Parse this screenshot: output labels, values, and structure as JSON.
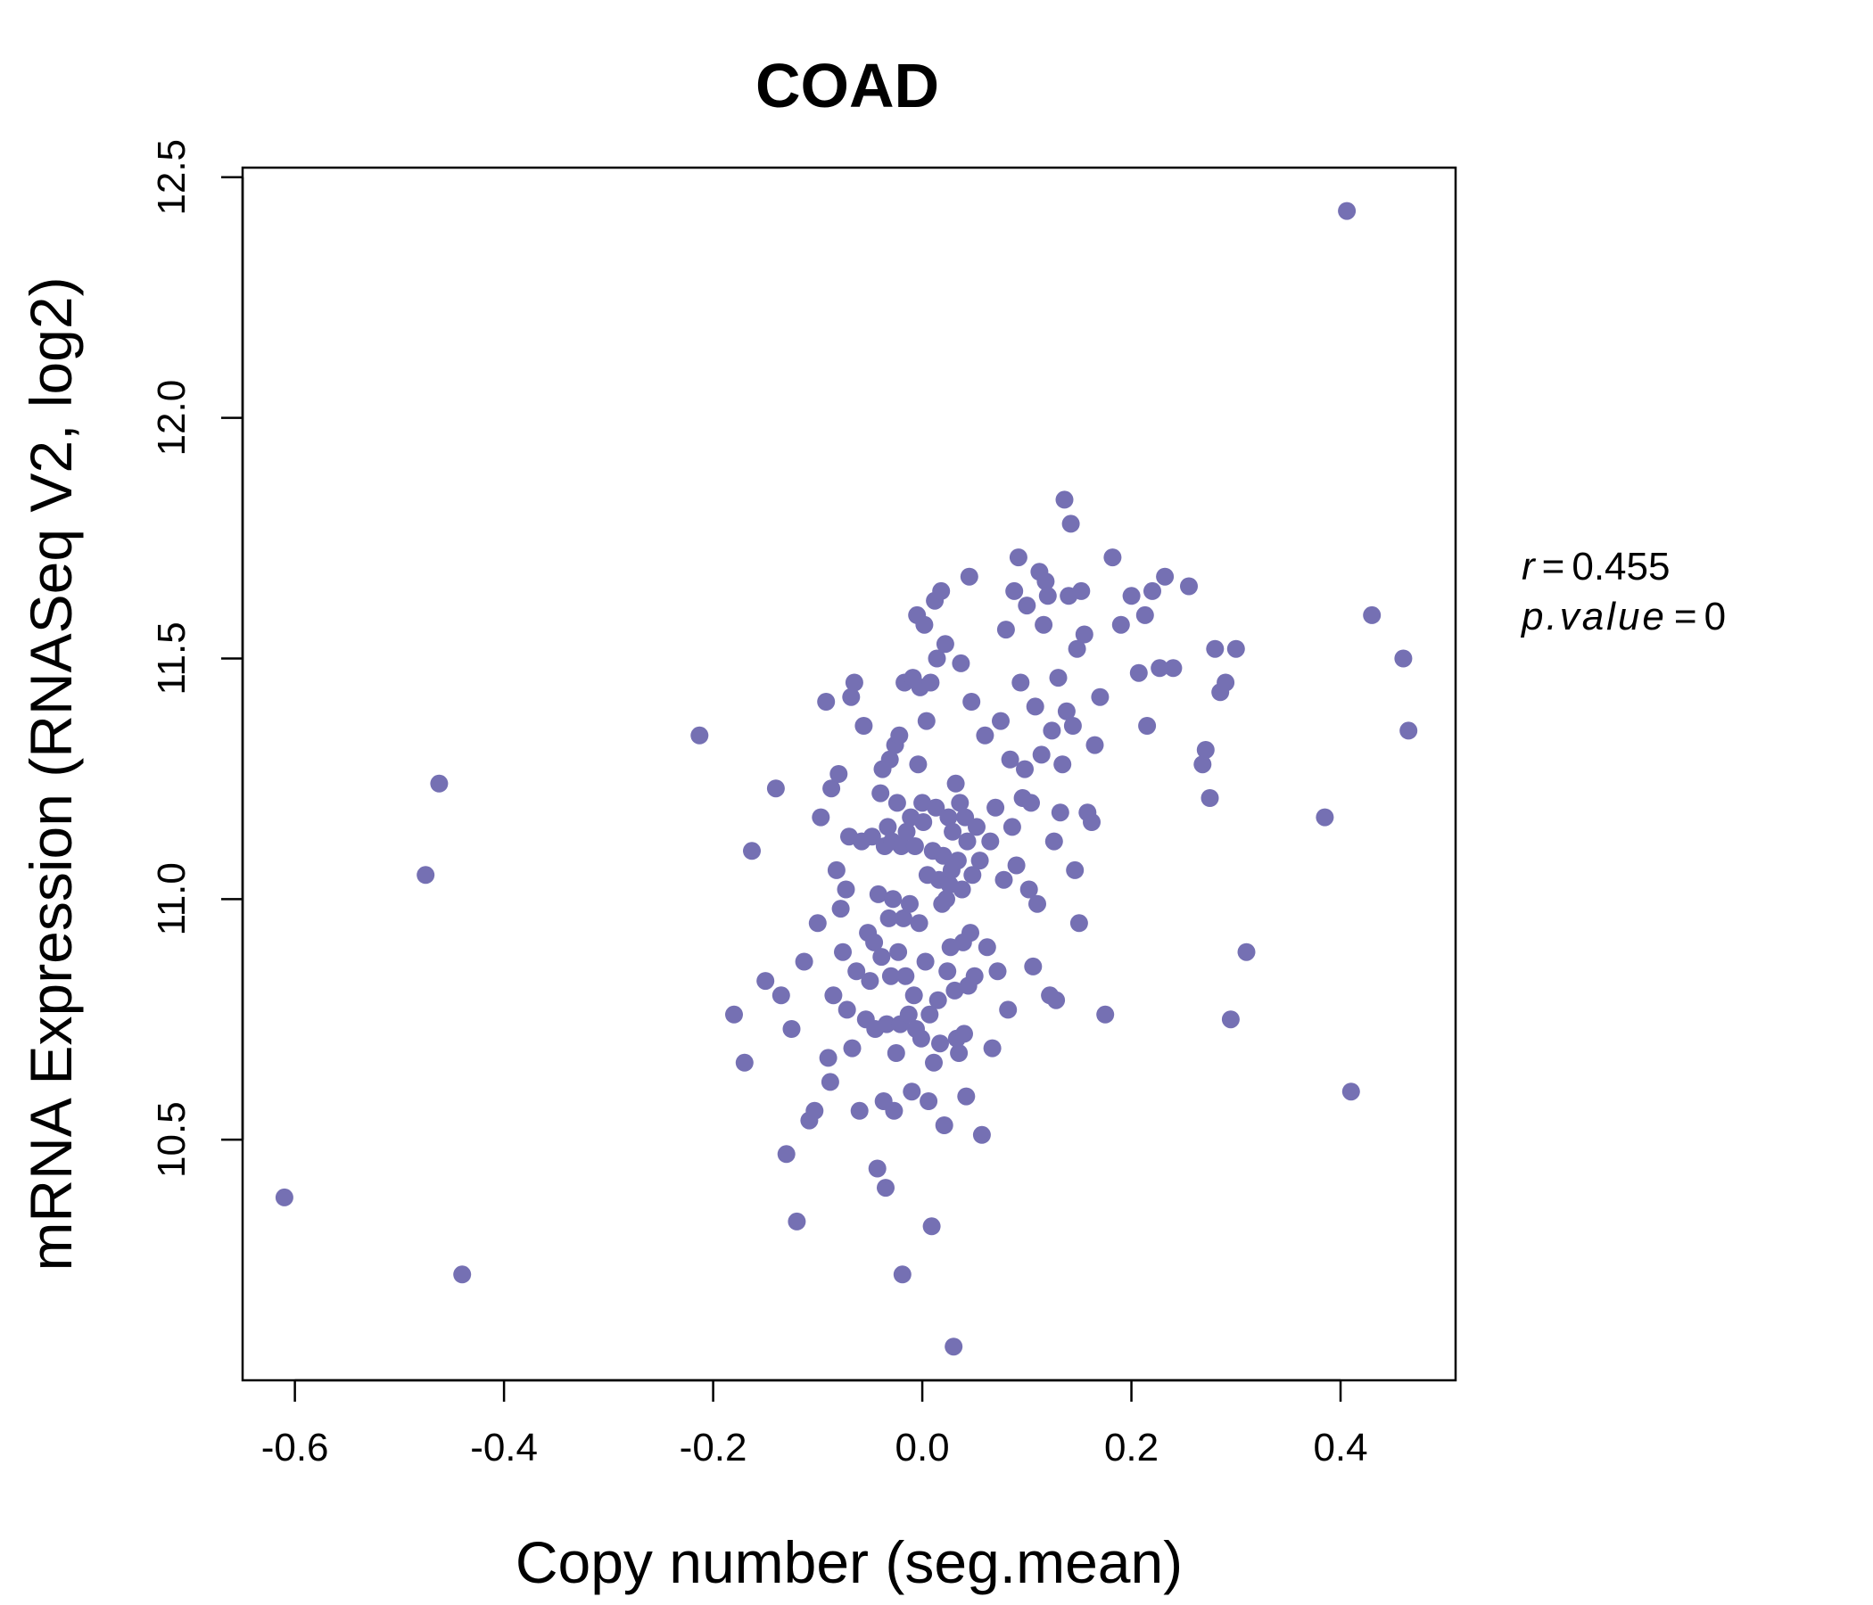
{
  "chart_data": {
    "type": "scatter",
    "title": "COAD",
    "xlabel": "Copy number (seg.mean)",
    "ylabel": "mRNA Expression (RNASeq V2, log2)",
    "xlim": [
      -0.65,
      0.51
    ],
    "ylim": [
      10.0,
      12.52
    ],
    "xticks": [
      -0.6,
      -0.4,
      -0.2,
      0.0,
      0.2,
      0.4
    ],
    "xtick_labels": [
      "-0.6",
      "-0.4",
      "-0.2",
      "0.0",
      "0.2",
      "0.4"
    ],
    "yticks": [
      10.5,
      11.0,
      11.5,
      12.0,
      12.5
    ],
    "ytick_labels": [
      "10.5",
      "11.0",
      "11.5",
      "12.0",
      "12.5"
    ],
    "color": "#7570b3",
    "annotation": {
      "r_label": "r",
      "r_value": "0.455",
      "p_label": "p.value",
      "p_value": "0"
    },
    "points": [
      [
        -0.61,
        10.38
      ],
      [
        -0.44,
        10.22
      ],
      [
        -0.475,
        11.05
      ],
      [
        -0.462,
        11.24
      ],
      [
        -0.213,
        11.34
      ],
      [
        -0.18,
        10.76
      ],
      [
        -0.17,
        10.66
      ],
      [
        -0.163,
        11.1
      ],
      [
        -0.15,
        10.83
      ],
      [
        -0.14,
        11.23
      ],
      [
        -0.135,
        10.8
      ],
      [
        -0.13,
        10.47
      ],
      [
        -0.125,
        10.73
      ],
      [
        -0.12,
        10.33
      ],
      [
        -0.113,
        10.87
      ],
      [
        -0.108,
        10.54
      ],
      [
        -0.103,
        10.56
      ],
      [
        -0.1,
        10.95
      ],
      [
        -0.097,
        11.17
      ],
      [
        -0.092,
        11.41
      ],
      [
        -0.09,
        10.67
      ],
      [
        -0.088,
        10.62
      ],
      [
        -0.087,
        11.23
      ],
      [
        -0.085,
        10.8
      ],
      [
        -0.082,
        11.06
      ],
      [
        -0.08,
        11.26
      ],
      [
        -0.078,
        10.98
      ],
      [
        -0.076,
        10.89
      ],
      [
        -0.073,
        11.02
      ],
      [
        -0.072,
        10.77
      ],
      [
        -0.07,
        11.13
      ],
      [
        -0.068,
        11.42
      ],
      [
        -0.067,
        10.69
      ],
      [
        -0.065,
        11.45
      ],
      [
        -0.063,
        10.85
      ],
      [
        -0.06,
        10.56
      ],
      [
        -0.058,
        11.12
      ],
      [
        -0.056,
        11.36
      ],
      [
        -0.054,
        10.75
      ],
      [
        -0.052,
        10.93
      ],
      [
        -0.05,
        10.83
      ],
      [
        -0.048,
        11.13
      ],
      [
        -0.046,
        10.91
      ],
      [
        -0.045,
        10.73
      ],
      [
        -0.043,
        10.44
      ],
      [
        -0.042,
        11.01
      ],
      [
        -0.04,
        11.22
      ],
      [
        -0.039,
        10.88
      ],
      [
        -0.038,
        11.27
      ],
      [
        -0.037,
        10.58
      ],
      [
        -0.036,
        11.11
      ],
      [
        -0.035,
        10.4
      ],
      [
        -0.034,
        10.74
      ],
      [
        -0.033,
        11.15
      ],
      [
        -0.032,
        10.96
      ],
      [
        -0.031,
        11.29
      ],
      [
        -0.03,
        10.84
      ],
      [
        -0.029,
        11.12
      ],
      [
        -0.028,
        11.0
      ],
      [
        -0.027,
        10.56
      ],
      [
        -0.026,
        11.32
      ],
      [
        -0.025,
        10.68
      ],
      [
        -0.024,
        11.2
      ],
      [
        -0.023,
        10.89
      ],
      [
        -0.022,
        11.34
      ],
      [
        -0.021,
        10.74
      ],
      [
        -0.02,
        11.11
      ],
      [
        -0.019,
        10.22
      ],
      [
        -0.018,
        10.96
      ],
      [
        -0.017,
        11.45
      ],
      [
        -0.016,
        10.84
      ],
      [
        -0.015,
        11.14
      ],
      [
        -0.013,
        10.76
      ],
      [
        -0.012,
        10.99
      ],
      [
        -0.011,
        11.17
      ],
      [
        -0.01,
        10.6
      ],
      [
        -0.009,
        11.46
      ],
      [
        -0.008,
        10.8
      ],
      [
        -0.007,
        11.11
      ],
      [
        -0.006,
        10.73
      ],
      [
        -0.005,
        11.59
      ],
      [
        -0.004,
        11.28
      ],
      [
        -0.003,
        10.95
      ],
      [
        -0.002,
        11.44
      ],
      [
        -0.001,
        10.71
      ],
      [
        0.0,
        11.2
      ],
      [
        0.001,
        11.16
      ],
      [
        0.002,
        11.57
      ],
      [
        0.003,
        10.87
      ],
      [
        0.004,
        11.37
      ],
      [
        0.005,
        11.05
      ],
      [
        0.006,
        10.58
      ],
      [
        0.007,
        10.76
      ],
      [
        0.008,
        11.45
      ],
      [
        0.009,
        10.32
      ],
      [
        0.01,
        11.1
      ],
      [
        0.011,
        10.66
      ],
      [
        0.012,
        11.62
      ],
      [
        0.013,
        11.19
      ],
      [
        0.014,
        11.5
      ],
      [
        0.015,
        10.79
      ],
      [
        0.016,
        11.04
      ],
      [
        0.017,
        10.7
      ],
      [
        0.018,
        11.64
      ],
      [
        0.019,
        10.99
      ],
      [
        0.02,
        11.09
      ],
      [
        0.021,
        10.53
      ],
      [
        0.022,
        11.53
      ],
      [
        0.023,
        11.0
      ],
      [
        0.024,
        10.85
      ],
      [
        0.025,
        11.17
      ],
      [
        0.026,
        11.03
      ],
      [
        0.027,
        10.9
      ],
      [
        0.028,
        11.06
      ],
      [
        0.029,
        11.14
      ],
      [
        0.03,
        10.07
      ],
      [
        0.031,
        10.81
      ],
      [
        0.032,
        11.24
      ],
      [
        0.033,
        10.71
      ],
      [
        0.034,
        11.08
      ],
      [
        0.035,
        10.68
      ],
      [
        0.036,
        11.2
      ],
      [
        0.037,
        11.49
      ],
      [
        0.038,
        11.02
      ],
      [
        0.039,
        10.91
      ],
      [
        0.04,
        10.72
      ],
      [
        0.041,
        11.17
      ],
      [
        0.042,
        10.59
      ],
      [
        0.043,
        11.12
      ],
      [
        0.044,
        10.82
      ],
      [
        0.045,
        11.67
      ],
      [
        0.046,
        10.93
      ],
      [
        0.047,
        11.41
      ],
      [
        0.048,
        11.05
      ],
      [
        0.05,
        10.84
      ],
      [
        0.052,
        11.15
      ],
      [
        0.055,
        11.08
      ],
      [
        0.057,
        10.51
      ],
      [
        0.06,
        11.34
      ],
      [
        0.062,
        10.9
      ],
      [
        0.065,
        11.12
      ],
      [
        0.067,
        10.69
      ],
      [
        0.07,
        11.19
      ],
      [
        0.072,
        10.85
      ],
      [
        0.075,
        11.37
      ],
      [
        0.078,
        11.04
      ],
      [
        0.08,
        11.56
      ],
      [
        0.082,
        10.77
      ],
      [
        0.084,
        11.29
      ],
      [
        0.086,
        11.15
      ],
      [
        0.088,
        11.64
      ],
      [
        0.09,
        11.07
      ],
      [
        0.092,
        11.71
      ],
      [
        0.094,
        11.45
      ],
      [
        0.096,
        11.21
      ],
      [
        0.098,
        11.27
      ],
      [
        0.1,
        11.61
      ],
      [
        0.102,
        11.02
      ],
      [
        0.104,
        11.2
      ],
      [
        0.106,
        10.86
      ],
      [
        0.108,
        11.4
      ],
      [
        0.11,
        10.99
      ],
      [
        0.112,
        11.68
      ],
      [
        0.114,
        11.3
      ],
      [
        0.116,
        11.57
      ],
      [
        0.118,
        11.66
      ],
      [
        0.12,
        11.63
      ],
      [
        0.122,
        10.8
      ],
      [
        0.124,
        11.35
      ],
      [
        0.126,
        11.12
      ],
      [
        0.128,
        10.79
      ],
      [
        0.13,
        11.46
      ],
      [
        0.132,
        11.18
      ],
      [
        0.134,
        11.28
      ],
      [
        0.136,
        11.83
      ],
      [
        0.138,
        11.39
      ],
      [
        0.14,
        11.63
      ],
      [
        0.142,
        11.78
      ],
      [
        0.144,
        11.36
      ],
      [
        0.146,
        11.06
      ],
      [
        0.148,
        11.52
      ],
      [
        0.15,
        10.95
      ],
      [
        0.152,
        11.64
      ],
      [
        0.155,
        11.55
      ],
      [
        0.158,
        11.18
      ],
      [
        0.162,
        11.16
      ],
      [
        0.165,
        11.32
      ],
      [
        0.17,
        11.42
      ],
      [
        0.175,
        10.76
      ],
      [
        0.182,
        11.71
      ],
      [
        0.19,
        11.57
      ],
      [
        0.2,
        11.63
      ],
      [
        0.207,
        11.47
      ],
      [
        0.213,
        11.59
      ],
      [
        0.215,
        11.36
      ],
      [
        0.22,
        11.64
      ],
      [
        0.227,
        11.48
      ],
      [
        0.232,
        11.67
      ],
      [
        0.24,
        11.48
      ],
      [
        0.255,
        11.65
      ],
      [
        0.268,
        11.28
      ],
      [
        0.271,
        11.31
      ],
      [
        0.275,
        11.21
      ],
      [
        0.28,
        11.52
      ],
      [
        0.285,
        11.43
      ],
      [
        0.29,
        11.45
      ],
      [
        0.295,
        10.75
      ],
      [
        0.3,
        11.52
      ],
      [
        0.31,
        10.89
      ],
      [
        0.385,
        11.17
      ],
      [
        0.406,
        12.43
      ],
      [
        0.41,
        10.6
      ],
      [
        0.43,
        11.59
      ],
      [
        0.46,
        11.5
      ],
      [
        0.465,
        11.35
      ]
    ]
  }
}
